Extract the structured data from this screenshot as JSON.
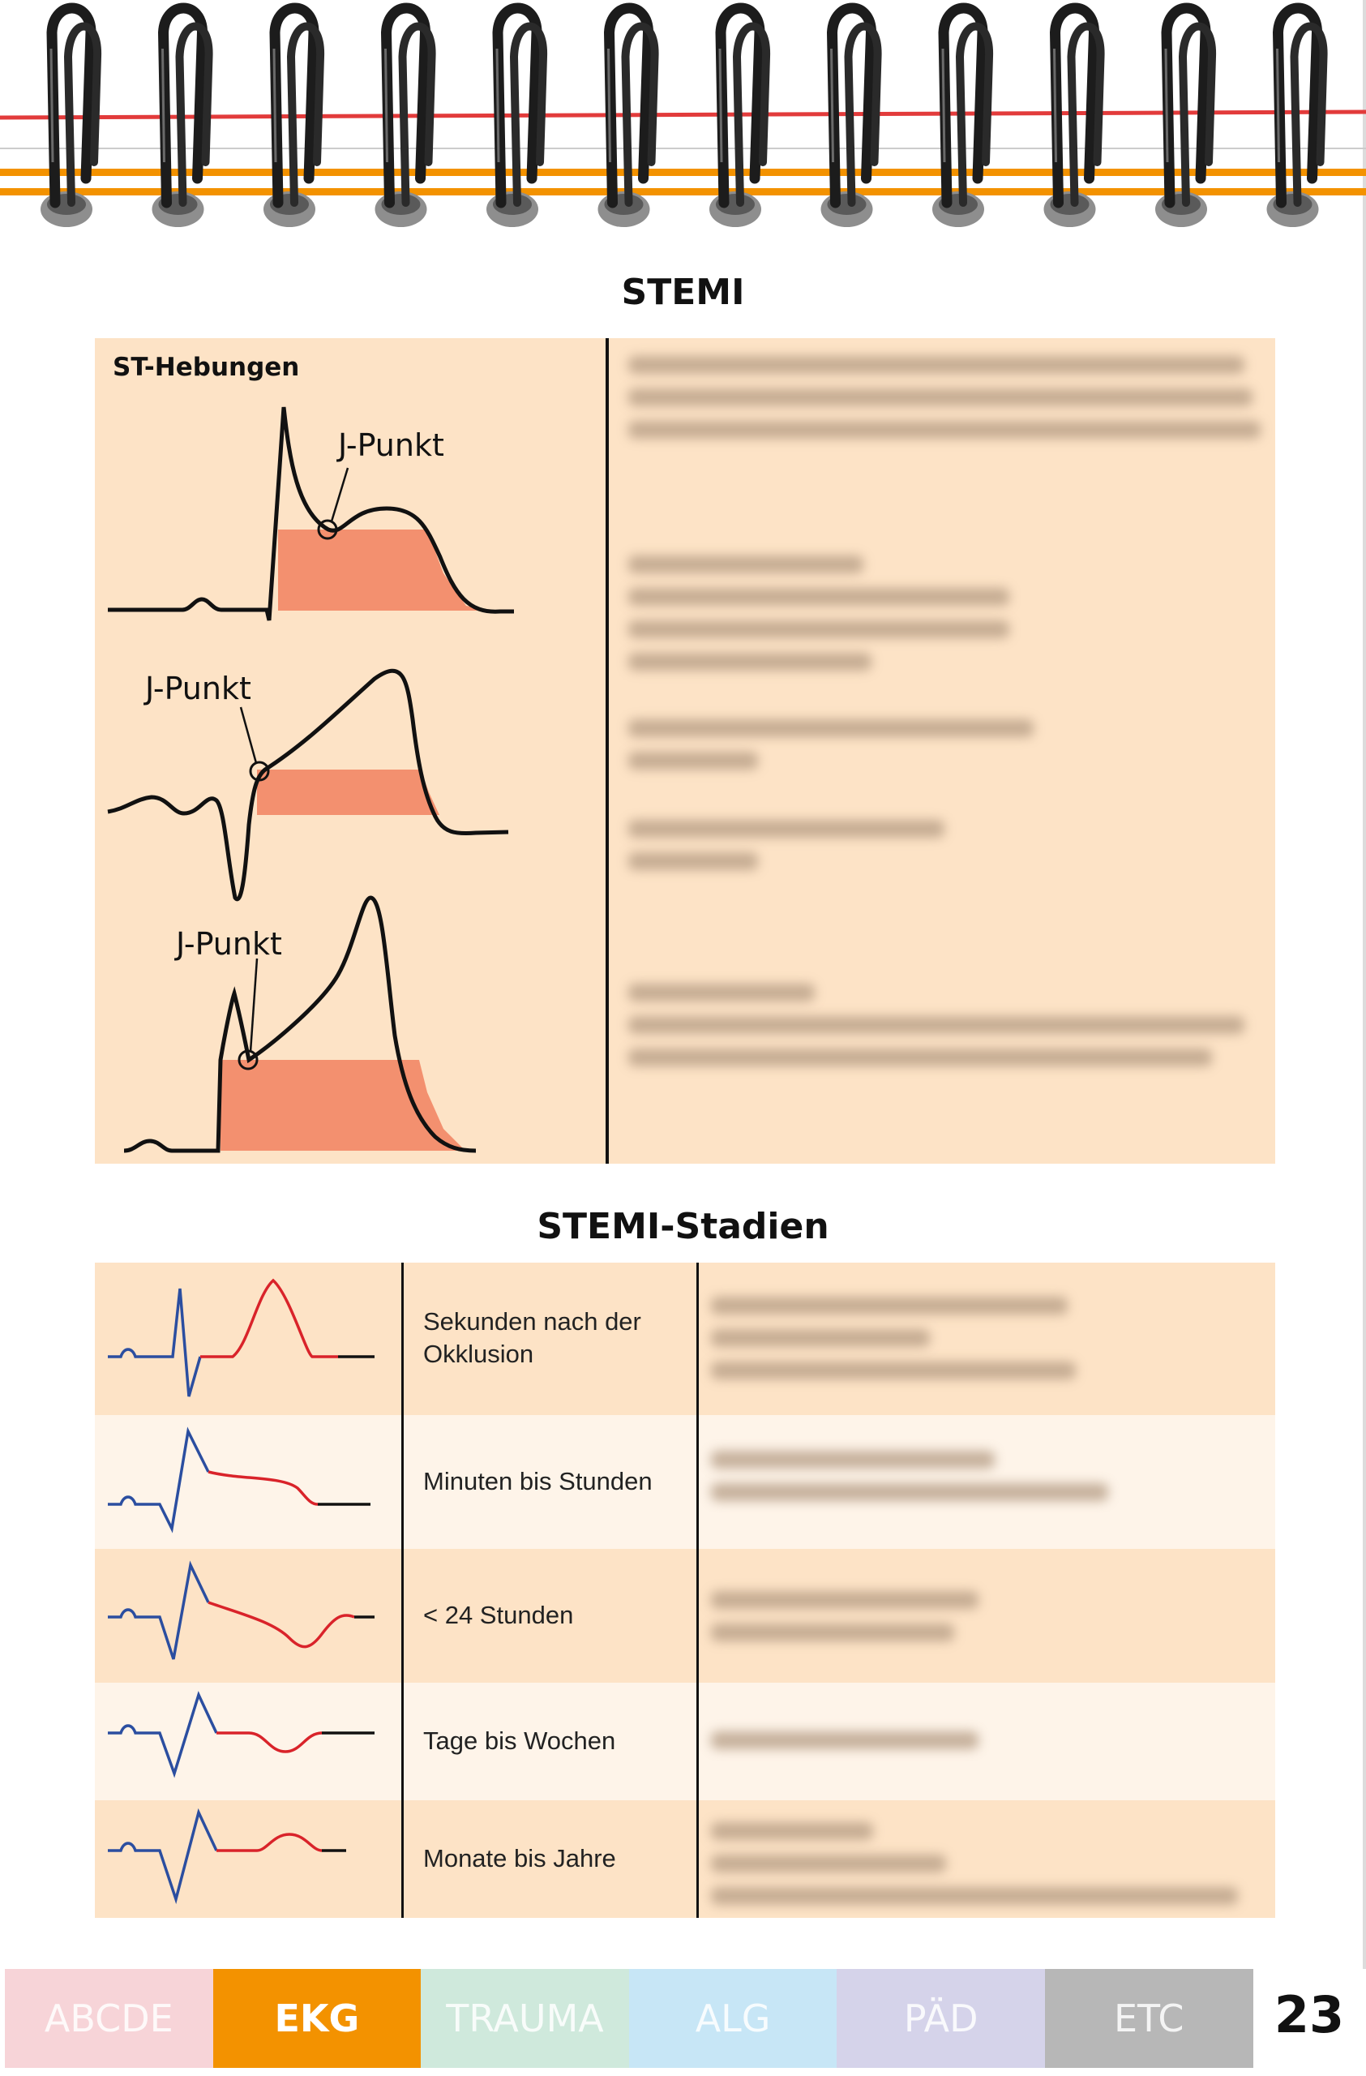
{
  "page": {
    "title": "STEMI",
    "subtitle": "STEMI-Stadien",
    "page_number": "23"
  },
  "stemi": {
    "label": "ST-Hebungen",
    "j_point_label": "J-Punkt",
    "fill_color": "#f3906f",
    "panel_color": "#fde3c6"
  },
  "stages": [
    {
      "text": "Sekunden nach der Okklusion"
    },
    {
      "text": "Minuten bis Stunden"
    },
    {
      "text": "< 24 Stunden"
    },
    {
      "text": "Tage bis Wochen"
    },
    {
      "text": "Monate bis Jahre"
    }
  ],
  "tabs": [
    {
      "label": "ABCDE",
      "color": "#f7d4d8"
    },
    {
      "label": "EKG",
      "color": "#f39200",
      "active": true
    },
    {
      "label": "TRAUMA",
      "color": "#cfe9dc"
    },
    {
      "label": "ALG",
      "color": "#c7e6f6"
    },
    {
      "label": "PÄD",
      "color": "#d5d3ea"
    },
    {
      "label": "ETC",
      "color": "#b7b7b7"
    }
  ],
  "colors": {
    "ecg_blue": "#2b4ea0",
    "ecg_red": "#d9232a",
    "line_orange": "#f39200",
    "line_red": "#e23b3b"
  }
}
